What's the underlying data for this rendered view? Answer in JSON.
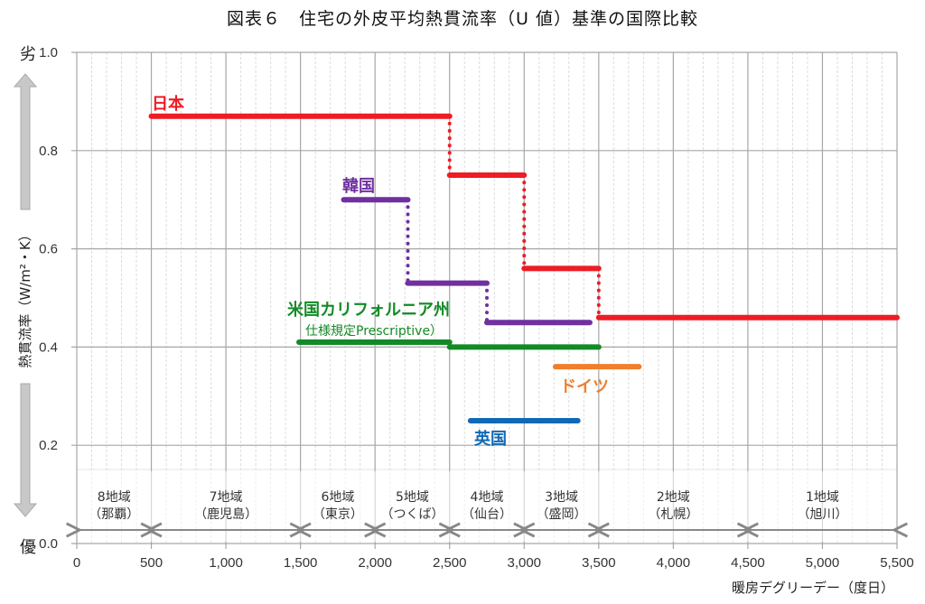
{
  "chart_data": {
    "type": "line",
    "subtype": "step",
    "title": "図表６　住宅の外皮平均熱貫流率（U 値）基準の国際比較",
    "xlabel": "暖房デグリーデー（度日）",
    "ylabel": "熱貫流率（W/m²・K）",
    "y_top_marker": "劣",
    "y_bottom_marker": "優",
    "xlim": [
      0,
      5500
    ],
    "ylim": [
      0.0,
      1.0
    ],
    "x_ticks": [
      "0",
      "500",
      "1,000",
      "1,500",
      "2,000",
      "2,500",
      "3,000",
      "3,500",
      "4,000",
      "4,500",
      "5,000",
      "5,500"
    ],
    "y_ticks": [
      "0.0",
      "0.2",
      "0.4",
      "0.6",
      "0.8",
      "1.0"
    ],
    "grid": true,
    "series": [
      {
        "name": "日本",
        "color": "#ee1c25",
        "segments": [
          {
            "x0": 500,
            "x1": 2500,
            "y": 0.87
          },
          {
            "x0": 2500,
            "x1": 3000,
            "y": 0.75
          },
          {
            "x0": 3000,
            "x1": 3500,
            "y": 0.56
          },
          {
            "x0": 3500,
            "x1": 5500,
            "y": 0.46
          }
        ]
      },
      {
        "name": "韓国",
        "color": "#7030a0",
        "segments": [
          {
            "x0": 1790,
            "x1": 2220,
            "y": 0.7
          },
          {
            "x0": 2220,
            "x1": 2750,
            "y": 0.53
          },
          {
            "x0": 2750,
            "x1": 3440,
            "y": 0.45
          }
        ]
      },
      {
        "name": "米国カリフォルニア州",
        "sublabel": "仕様規定Prescriptive）",
        "color": "#138a26",
        "segments": [
          {
            "x0": 1490,
            "x1": 2500,
            "y": 0.41
          },
          {
            "x0": 2500,
            "x1": 3500,
            "y": 0.4
          }
        ]
      },
      {
        "name": "ドイツ",
        "color": "#f07e2b",
        "segments": [
          {
            "x0": 3210,
            "x1": 3770,
            "y": 0.36
          }
        ]
      },
      {
        "name": "英国",
        "color": "#1069b5",
        "segments": [
          {
            "x0": 2640,
            "x1": 3360,
            "y": 0.25
          }
        ]
      }
    ],
    "regions": [
      {
        "zone": "8地域",
        "city": "（那覇）",
        "x0": 0,
        "x1": 500
      },
      {
        "zone": "7地域",
        "city": "（鹿児島）",
        "x0": 500,
        "x1": 1500
      },
      {
        "zone": "6地域",
        "city": "（東京）",
        "x0": 1500,
        "x1": 2000
      },
      {
        "zone": "5地域",
        "city": "（つくば）",
        "x0": 2000,
        "x1": 2500
      },
      {
        "zone": "4地域",
        "city": "（仙台）",
        "x0": 2500,
        "x1": 3000
      },
      {
        "zone": "3地域",
        "city": "（盛岡）",
        "x0": 3000,
        "x1": 3500
      },
      {
        "zone": "2地域",
        "city": "（札幌）",
        "x0": 3500,
        "x1": 4500
      },
      {
        "zone": "1地域",
        "city": "（旭川）",
        "x0": 4500,
        "x1": 5500
      }
    ]
  }
}
